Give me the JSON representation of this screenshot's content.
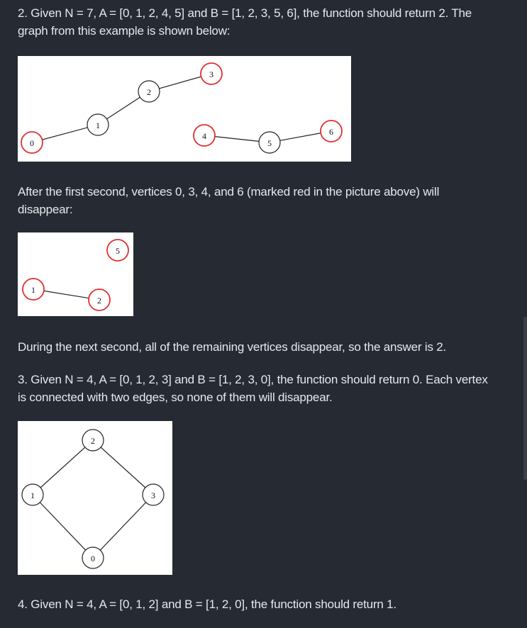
{
  "example2": {
    "line1": "2. Given N = 7, A = [0, 1, 2, 4, 5] and B = [1, 2, 3, 5, 6], the function should return 2. The",
    "line2": "graph from this example is shown below:"
  },
  "after_first": {
    "line1": "After the first second, vertices 0, 3, 4, and 6 (marked red in the picture above) will",
    "line2": "disappear:"
  },
  "next_second": "During the next second, all of the remaining vertices disappear, so the answer is 2.",
  "example3": {
    "line1": "3. Given N = 4, A = [0, 1, 2, 3] and B = [1, 2, 3, 0], the function should return 0. Each vertex",
    "line2": "is connected with two edges, so none of them will disappear."
  },
  "example4": "4. Given N = 4, A = [0, 1, 2] and B = [1, 2, 0], the function should return 1.",
  "colors": {
    "red_node": "#e03030",
    "normal_node": "#222222",
    "edge": "#222222"
  },
  "graphs": {
    "graph1": {
      "nodes": [
        {
          "label": "0",
          "red": true
        },
        {
          "label": "1",
          "red": false
        },
        {
          "label": "2",
          "red": false
        },
        {
          "label": "3",
          "red": true
        },
        {
          "label": "4",
          "red": true
        },
        {
          "label": "5",
          "red": false
        },
        {
          "label": "6",
          "red": true
        }
      ],
      "edges": [
        [
          "0",
          "1"
        ],
        [
          "1",
          "2"
        ],
        [
          "2",
          "3"
        ],
        [
          "4",
          "5"
        ],
        [
          "5",
          "6"
        ]
      ]
    },
    "graph2": {
      "nodes": [
        {
          "label": "1",
          "red": true
        },
        {
          "label": "2",
          "red": true
        },
        {
          "label": "5",
          "red": true
        }
      ],
      "edges": [
        [
          "1",
          "2"
        ]
      ]
    },
    "graph3": {
      "nodes": [
        {
          "label": "2",
          "red": false
        },
        {
          "label": "1",
          "red": false
        },
        {
          "label": "3",
          "red": false
        },
        {
          "label": "0",
          "red": false
        }
      ],
      "edges": [
        [
          "2",
          "1"
        ],
        [
          "2",
          "3"
        ],
        [
          "1",
          "0"
        ],
        [
          "3",
          "0"
        ]
      ]
    }
  }
}
